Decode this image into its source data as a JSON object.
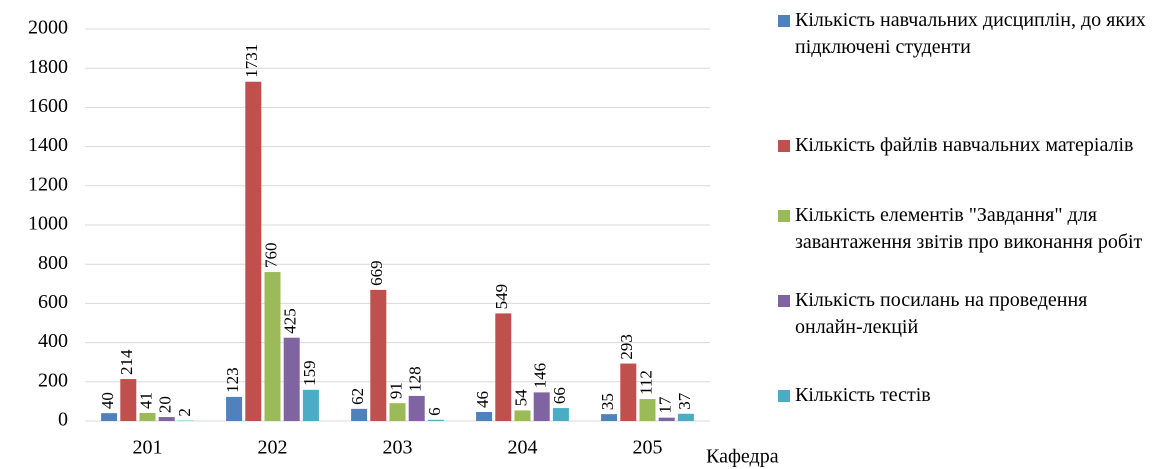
{
  "chart_data": {
    "type": "bar",
    "x_label": "Кафедра",
    "categories": [
      "201",
      "202",
      "203",
      "204",
      "205"
    ],
    "series": [
      {
        "name": "Кількість навчальних дисциплін, до яких підключені студенти",
        "color": "#4f81bd",
        "values": [
          40,
          123,
          62,
          46,
          35
        ]
      },
      {
        "name": "Кількість файлів навчальних матеріалів",
        "color": "#c0504d",
        "values": [
          214,
          1731,
          669,
          549,
          293
        ]
      },
      {
        "name": "Кількість елементів \"Завдання\" для завантаження звітів про виконання робіт",
        "color": "#9bbb59",
        "values": [
          41,
          760,
          91,
          54,
          112
        ]
      },
      {
        "name": "Кількість посилань на проведення онлайн-лекцій",
        "color": "#8064a2",
        "values": [
          20,
          425,
          128,
          146,
          17
        ]
      },
      {
        "name": "Кількість тестів",
        "color": "#4bacc6",
        "values": [
          2,
          159,
          6,
          66,
          37
        ]
      }
    ],
    "ylim": [
      0,
      2000
    ],
    "yticks": [
      0,
      200,
      400,
      600,
      800,
      1000,
      1200,
      1400,
      1600,
      1800,
      2000
    ],
    "grid": true,
    "legend": "right"
  }
}
